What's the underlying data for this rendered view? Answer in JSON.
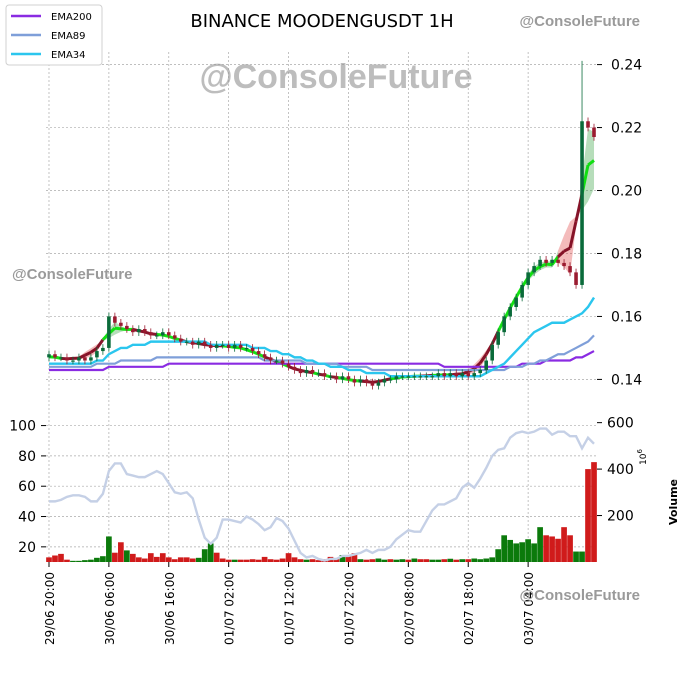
{
  "chart_data": {
    "type": "candlestick",
    "title": "BINANCE MOODENGUSDT 1H",
    "watermark": "@ConsoleFuture",
    "legend": {
      "placement": "top-left",
      "entries": [
        {
          "name": "EMA200",
          "color": "#8a2be2"
        },
        {
          "name": "EMA89",
          "color": "#7f9fd9"
        },
        {
          "name": "EMA34",
          "color": "#2bc6ee"
        }
      ]
    },
    "grid": true,
    "price_axis": {
      "side": "right",
      "ylim": [
        0.136,
        0.244
      ],
      "ticks": [
        "0.14",
        "0.16",
        "0.18",
        "0.20",
        "0.22",
        "0.24"
      ]
    },
    "x_tick_labels": [
      "29/06 20:00",
      "30/06 06:00",
      "30/06 16:00",
      "01/07 02:00",
      "01/07 12:00",
      "01/07 22:00",
      "02/07 08:00",
      "02/07 18:00",
      "03/07 04:00"
    ],
    "x_tick_index": [
      0,
      10,
      20,
      30,
      40,
      50,
      60,
      70,
      80
    ],
    "candles": {
      "close": [
        0.148,
        0.147,
        0.147,
        0.146,
        0.146,
        0.147,
        0.146,
        0.147,
        0.149,
        0.15,
        0.16,
        0.158,
        0.157,
        0.156,
        0.155,
        0.156,
        0.155,
        0.154,
        0.154,
        0.155,
        0.154,
        0.153,
        0.152,
        0.152,
        0.151,
        0.152,
        0.151,
        0.15,
        0.151,
        0.151,
        0.15,
        0.151,
        0.15,
        0.15,
        0.149,
        0.148,
        0.147,
        0.146,
        0.146,
        0.145,
        0.144,
        0.143,
        0.142,
        0.143,
        0.142,
        0.142,
        0.141,
        0.141,
        0.14,
        0.141,
        0.14,
        0.139,
        0.14,
        0.139,
        0.138,
        0.139,
        0.14,
        0.14,
        0.141,
        0.141,
        0.141,
        0.141,
        0.141,
        0.141,
        0.141,
        0.142,
        0.141,
        0.142,
        0.141,
        0.142,
        0.141,
        0.142,
        0.143,
        0.146,
        0.151,
        0.155,
        0.16,
        0.163,
        0.166,
        0.17,
        0.174,
        0.176,
        0.178,
        0.177,
        0.178,
        0.177,
        0.176,
        0.174,
        0.17,
        0.222,
        0.22,
        0.217
      ],
      "open": [
        0.147,
        0.148,
        0.147,
        0.147,
        0.146,
        0.146,
        0.147,
        0.146,
        0.147,
        0.149,
        0.15,
        0.16,
        0.158,
        0.157,
        0.156,
        0.155,
        0.156,
        0.155,
        0.154,
        0.154,
        0.155,
        0.154,
        0.153,
        0.152,
        0.152,
        0.151,
        0.152,
        0.151,
        0.15,
        0.151,
        0.151,
        0.15,
        0.151,
        0.15,
        0.15,
        0.149,
        0.148,
        0.147,
        0.146,
        0.146,
        0.145,
        0.144,
        0.143,
        0.142,
        0.143,
        0.142,
        0.142,
        0.141,
        0.141,
        0.14,
        0.141,
        0.14,
        0.139,
        0.14,
        0.139,
        0.138,
        0.139,
        0.14,
        0.14,
        0.141,
        0.141,
        0.141,
        0.141,
        0.141,
        0.141,
        0.141,
        0.142,
        0.141,
        0.142,
        0.141,
        0.142,
        0.141,
        0.142,
        0.143,
        0.146,
        0.151,
        0.155,
        0.16,
        0.163,
        0.166,
        0.17,
        0.174,
        0.176,
        0.178,
        0.177,
        0.178,
        0.177,
        0.176,
        0.174,
        0.17,
        0.222,
        0.22
      ],
      "high_wick_max": 0.24
    },
    "ema200": [
      0.143,
      0.143,
      0.143,
      0.143,
      0.143,
      0.143,
      0.143,
      0.143,
      0.143,
      0.143,
      0.144,
      0.144,
      0.144,
      0.144,
      0.144,
      0.144,
      0.144,
      0.144,
      0.144,
      0.144,
      0.145,
      0.145,
      0.145,
      0.145,
      0.145,
      0.145,
      0.145,
      0.145,
      0.145,
      0.145,
      0.145,
      0.145,
      0.145,
      0.145,
      0.145,
      0.145,
      0.145,
      0.145,
      0.145,
      0.145,
      0.145,
      0.145,
      0.145,
      0.145,
      0.145,
      0.145,
      0.145,
      0.145,
      0.145,
      0.145,
      0.145,
      0.145,
      0.145,
      0.145,
      0.145,
      0.145,
      0.145,
      0.145,
      0.145,
      0.145,
      0.145,
      0.145,
      0.145,
      0.145,
      0.145,
      0.145,
      0.144,
      0.144,
      0.144,
      0.144,
      0.144,
      0.144,
      0.144,
      0.144,
      0.144,
      0.144,
      0.144,
      0.144,
      0.144,
      0.145,
      0.145,
      0.145,
      0.145,
      0.146,
      0.146,
      0.146,
      0.146,
      0.146,
      0.147,
      0.147,
      0.148,
      0.149
    ],
    "ema89": [
      0.144,
      0.144,
      0.144,
      0.144,
      0.144,
      0.144,
      0.144,
      0.144,
      0.145,
      0.145,
      0.145,
      0.145,
      0.146,
      0.146,
      0.146,
      0.146,
      0.146,
      0.146,
      0.147,
      0.147,
      0.147,
      0.147,
      0.147,
      0.147,
      0.147,
      0.147,
      0.147,
      0.147,
      0.147,
      0.147,
      0.147,
      0.147,
      0.147,
      0.147,
      0.147,
      0.147,
      0.146,
      0.146,
      0.146,
      0.146,
      0.146,
      0.146,
      0.146,
      0.145,
      0.145,
      0.145,
      0.145,
      0.145,
      0.145,
      0.144,
      0.144,
      0.144,
      0.144,
      0.144,
      0.143,
      0.143,
      0.143,
      0.143,
      0.143,
      0.143,
      0.143,
      0.143,
      0.143,
      0.143,
      0.143,
      0.143,
      0.143,
      0.143,
      0.143,
      0.143,
      0.143,
      0.143,
      0.143,
      0.143,
      0.143,
      0.143,
      0.143,
      0.144,
      0.144,
      0.144,
      0.145,
      0.145,
      0.146,
      0.146,
      0.147,
      0.148,
      0.148,
      0.149,
      0.15,
      0.151,
      0.152,
      0.154
    ],
    "ema34": [
      0.145,
      0.145,
      0.145,
      0.145,
      0.145,
      0.145,
      0.145,
      0.145,
      0.146,
      0.146,
      0.148,
      0.149,
      0.15,
      0.15,
      0.151,
      0.151,
      0.151,
      0.152,
      0.152,
      0.152,
      0.152,
      0.152,
      0.152,
      0.152,
      0.152,
      0.152,
      0.152,
      0.151,
      0.151,
      0.151,
      0.151,
      0.151,
      0.151,
      0.151,
      0.15,
      0.15,
      0.15,
      0.149,
      0.149,
      0.148,
      0.148,
      0.147,
      0.147,
      0.146,
      0.146,
      0.145,
      0.145,
      0.144,
      0.144,
      0.144,
      0.143,
      0.143,
      0.143,
      0.142,
      0.142,
      0.142,
      0.142,
      0.141,
      0.141,
      0.141,
      0.141,
      0.141,
      0.141,
      0.141,
      0.141,
      0.141,
      0.141,
      0.141,
      0.141,
      0.141,
      0.141,
      0.141,
      0.141,
      0.142,
      0.143,
      0.144,
      0.145,
      0.147,
      0.149,
      0.151,
      0.153,
      0.155,
      0.156,
      0.157,
      0.158,
      0.158,
      0.158,
      0.159,
      0.16,
      0.161,
      0.163,
      0.166
    ],
    "oscillator_axis": {
      "side": "left",
      "ylim": [
        10,
        105
      ],
      "ticks": [
        "20",
        "40",
        "60",
        "80",
        "100"
      ]
    },
    "oscillator": [
      50,
      50,
      51,
      53,
      54,
      54,
      53,
      50,
      50,
      55,
      70,
      75,
      75,
      68,
      67,
      66,
      66,
      68,
      70,
      68,
      62,
      56,
      55,
      56,
      52,
      38,
      26,
      22,
      26,
      38,
      38,
      37,
      36,
      40,
      38,
      35,
      31,
      33,
      39,
      37,
      32,
      24,
      16,
      13,
      14,
      12,
      11,
      12,
      12,
      14,
      14,
      15,
      16,
      18,
      16,
      18,
      18,
      20,
      25,
      28,
      31,
      30,
      30,
      37,
      44,
      48,
      48,
      50,
      52,
      59,
      62,
      59,
      65,
      72,
      80,
      84,
      85,
      92,
      95,
      96,
      95,
      96,
      98,
      98,
      94,
      96,
      96,
      93,
      93,
      85,
      92,
      88
    ],
    "volume_axis": {
      "side": "right",
      "label": "Volume",
      "unit": "10^6",
      "ylim": [
        0,
        620
      ],
      "ticks": [
        "200",
        "400",
        "600"
      ]
    },
    "volume": [
      20,
      28,
      35,
      10,
      5,
      5,
      8,
      10,
      18,
      25,
      110,
      40,
      85,
      50,
      35,
      20,
      15,
      38,
      22,
      38,
      20,
      12,
      20,
      20,
      15,
      18,
      55,
      80,
      40,
      15,
      10,
      10,
      10,
      10,
      12,
      10,
      22,
      12,
      10,
      15,
      38,
      20,
      12,
      10,
      12,
      8,
      12,
      22,
      12,
      30,
      28,
      38,
      12,
      10,
      12,
      15,
      10,
      12,
      10,
      12,
      10,
      15,
      12,
      12,
      10,
      10,
      12,
      14,
      10,
      12,
      12,
      15,
      12,
      15,
      20,
      55,
      115,
      95,
      80,
      85,
      98,
      80,
      150,
      115,
      110,
      100,
      150,
      115,
      45,
      45,
      400,
      430
    ],
    "volume_up": [
      0,
      0,
      0,
      0,
      1,
      1,
      1,
      1,
      1,
      1,
      1,
      0,
      0,
      1,
      0,
      0,
      0,
      0,
      0,
      0,
      0,
      0,
      0,
      0,
      0,
      1,
      1,
      1,
      0,
      0,
      0,
      1,
      0,
      0,
      0,
      0,
      0,
      0,
      0,
      0,
      0,
      0,
      0,
      1,
      0,
      0,
      0,
      0,
      0,
      1,
      0,
      0,
      1,
      0,
      0,
      1,
      1,
      0,
      1,
      1,
      0,
      1,
      0,
      0,
      1,
      1,
      0,
      1,
      0,
      1,
      0,
      1,
      1,
      1,
      1,
      1,
      1,
      1,
      1,
      1,
      1,
      1,
      1,
      0,
      0,
      0,
      0,
      0,
      1,
      1,
      0,
      0
    ]
  }
}
